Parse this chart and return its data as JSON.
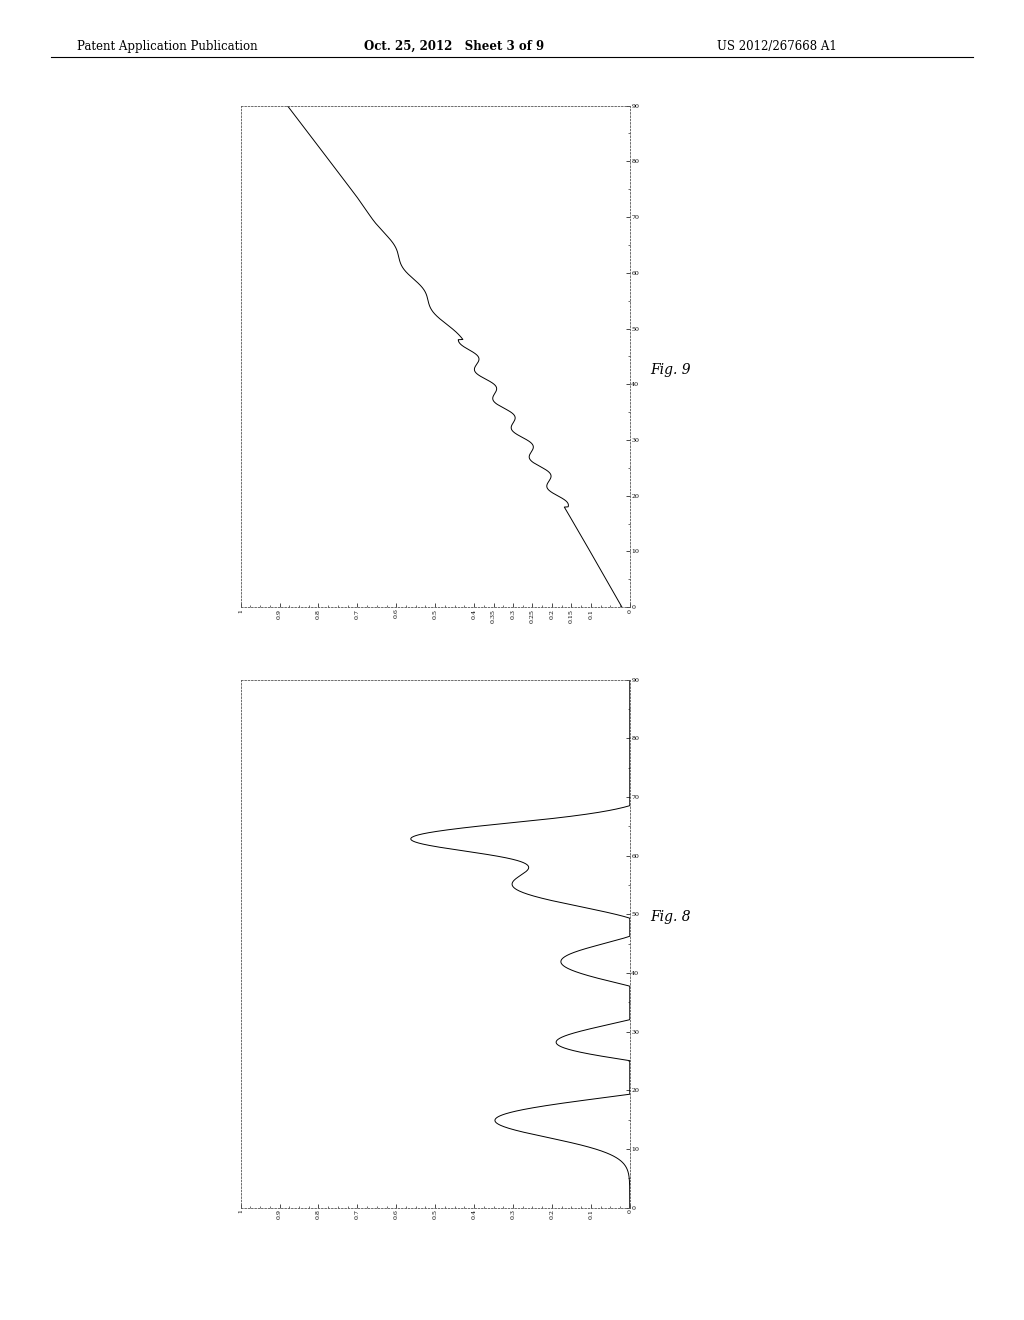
{
  "fig9_xlabel_vals": [
    "1",
    "0.9",
    "0.8",
    "0.7",
    "0.6",
    "0.5",
    "0.4",
    "0.35",
    "0.3",
    "0.25",
    "0.2",
    "0.15",
    "0.1",
    "0"
  ],
  "fig9_ylabel_vals": [
    "0",
    "10",
    "20",
    "30",
    "40",
    "50",
    "60",
    "70",
    "80",
    "90"
  ],
  "fig8_xlabel_vals": [
    "1",
    "0.9",
    "0.8",
    "0.7",
    "0.6",
    "0.5",
    "0.4",
    "0.3",
    "0.2",
    "0.1",
    "0"
  ],
  "fig8_ylabel_vals": [
    "0",
    "10",
    "20",
    "30",
    "40",
    "50",
    "60",
    "70",
    "80",
    "90"
  ],
  "header_left": "Patent Application Publication",
  "header_center": "Oct. 25, 2012   Sheet 3 of 9",
  "header_right": "US 2012/267668 A1",
  "fig9_label": "Fig. 9",
  "fig8_label": "Fig. 8",
  "background_color": "#ffffff",
  "line_color": "#000000"
}
